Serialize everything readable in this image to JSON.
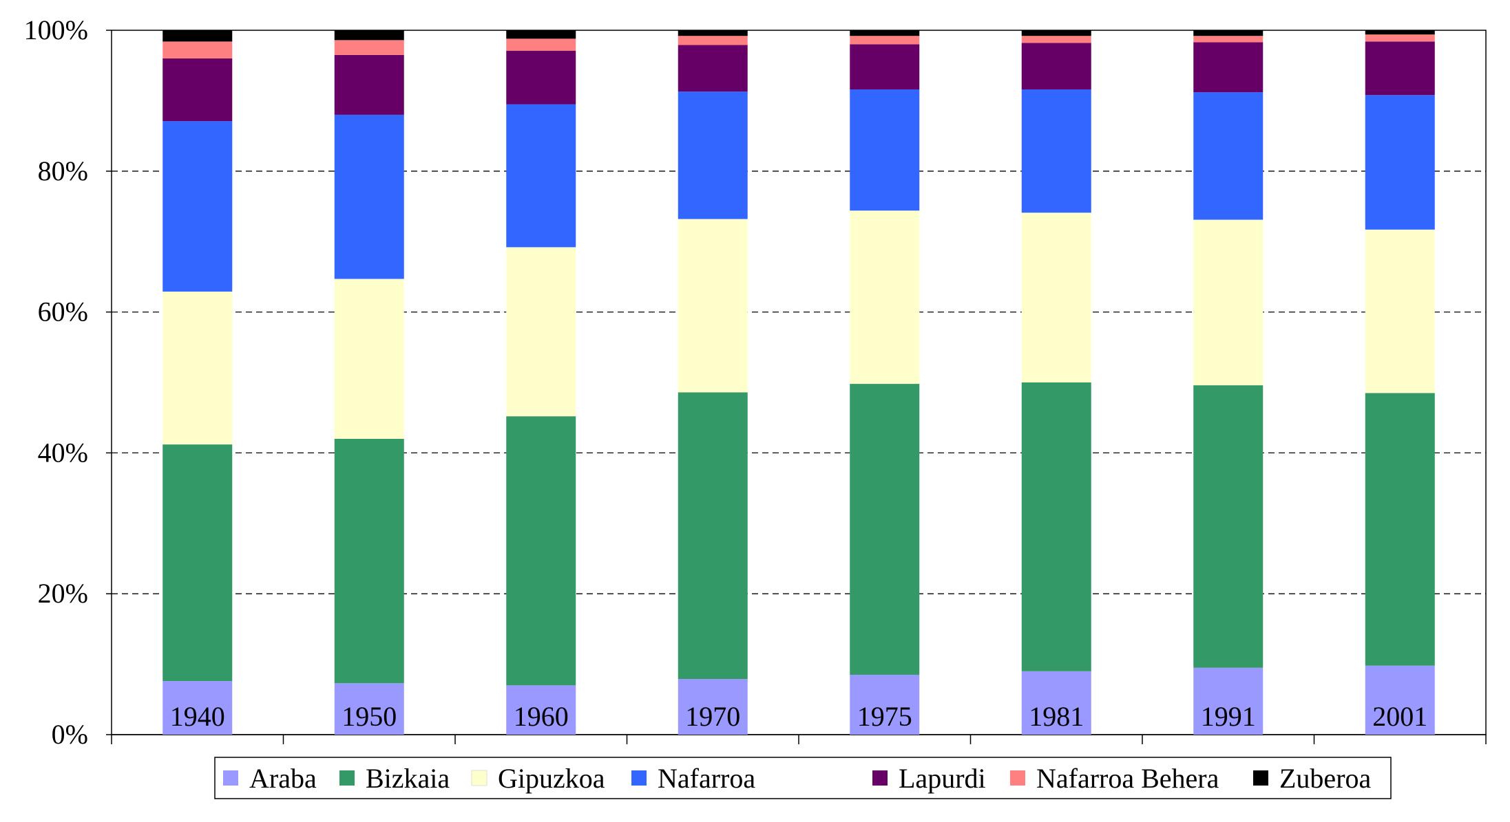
{
  "chart_data": {
    "type": "bar",
    "stacked": "percent",
    "title": "",
    "xlabel": "",
    "ylabel": "",
    "ylim": [
      0,
      100
    ],
    "y_ticks": [
      "0%",
      "20%",
      "40%",
      "60%",
      "80%",
      "100%"
    ],
    "grid": "horizontal dashed",
    "legend_placement": "bottom",
    "categories": [
      "1940",
      "1950",
      "1960",
      "1970",
      "1975",
      "1981",
      "1991",
      "2001"
    ],
    "series": [
      {
        "name": "Araba",
        "color": "#9999ff",
        "values": [
          7.6,
          7.3,
          7.0,
          7.9,
          8.5,
          9.0,
          9.5,
          9.8
        ]
      },
      {
        "name": "Bizkaia",
        "color": "#339966",
        "values": [
          33.6,
          34.7,
          38.2,
          40.7,
          41.3,
          41.0,
          40.1,
          38.7
        ]
      },
      {
        "name": "Gipuzkoa",
        "color": "#ffffcc",
        "values": [
          21.7,
          22.7,
          24.0,
          24.6,
          24.6,
          24.1,
          23.5,
          23.2
        ]
      },
      {
        "name": "Nafarroa",
        "color": "#3366ff",
        "values": [
          24.2,
          23.3,
          20.3,
          18.1,
          17.2,
          17.5,
          18.1,
          19.1
        ]
      },
      {
        "name": "Lapurdi",
        "color": "#660066",
        "values": [
          8.9,
          8.5,
          7.6,
          6.6,
          6.4,
          6.6,
          7.1,
          7.6
        ]
      },
      {
        "name": "Nafarroa Behera",
        "color": "#ff8080",
        "values": [
          2.4,
          2.1,
          1.7,
          1.3,
          1.2,
          1.0,
          0.9,
          1.0
        ]
      },
      {
        "name": "Zuberoa",
        "color": "#000000",
        "values": [
          1.6,
          1.4,
          1.2,
          0.8,
          0.8,
          0.8,
          0.8,
          0.6
        ]
      }
    ]
  }
}
